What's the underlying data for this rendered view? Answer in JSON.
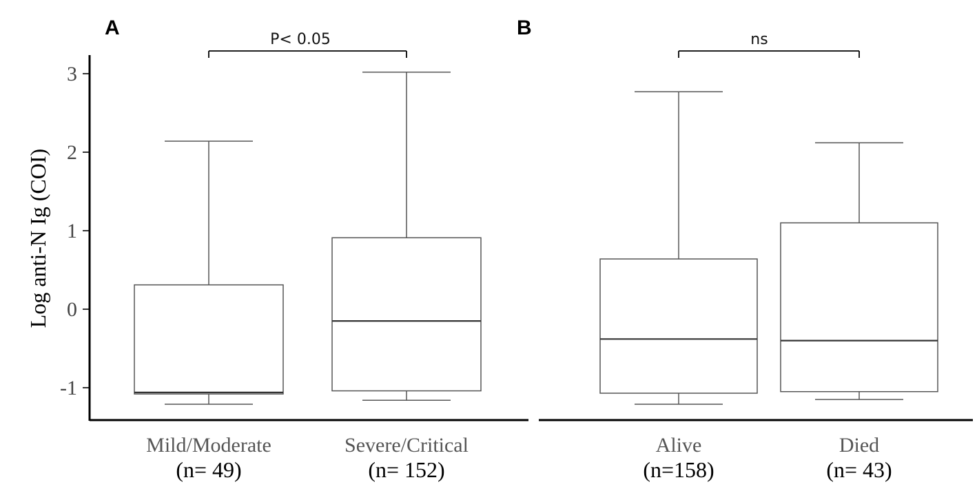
{
  "chart_data": [
    {
      "panel": "A",
      "type": "box",
      "ylabel": "Log anti-N Ig (COI)",
      "yticks": [
        3,
        2,
        1,
        0,
        -1
      ],
      "ytick_labels": [
        "3",
        "2",
        "1",
        "0",
        "-1"
      ],
      "ylim": [
        -1.4,
        3.2
      ],
      "categories": [
        "Mild/Moderate",
        "Severe/Critical"
      ],
      "n_labels": [
        "(n= 49)",
        "(n= 152)"
      ],
      "boxes": [
        {
          "min": -1.21,
          "q1": -1.08,
          "median": -1.06,
          "q3": 0.31,
          "max": 2.14
        },
        {
          "min": -1.16,
          "q1": -1.04,
          "median": -0.15,
          "q3": 0.91,
          "max": 3.02
        }
      ],
      "comparison": "P< 0.05"
    },
    {
      "panel": "B",
      "type": "box",
      "ylim": [
        -1.4,
        3.2
      ],
      "categories": [
        "Alive",
        "Died"
      ],
      "n_labels": [
        "(n=158)",
        "(n= 43)"
      ],
      "boxes": [
        {
          "min": -1.21,
          "q1": -1.07,
          "median": -0.38,
          "q3": 0.64,
          "max": 2.77
        },
        {
          "min": -1.15,
          "q1": -1.05,
          "median": -0.4,
          "q3": 1.1,
          "max": 2.12
        }
      ],
      "comparison": "ns"
    }
  ]
}
